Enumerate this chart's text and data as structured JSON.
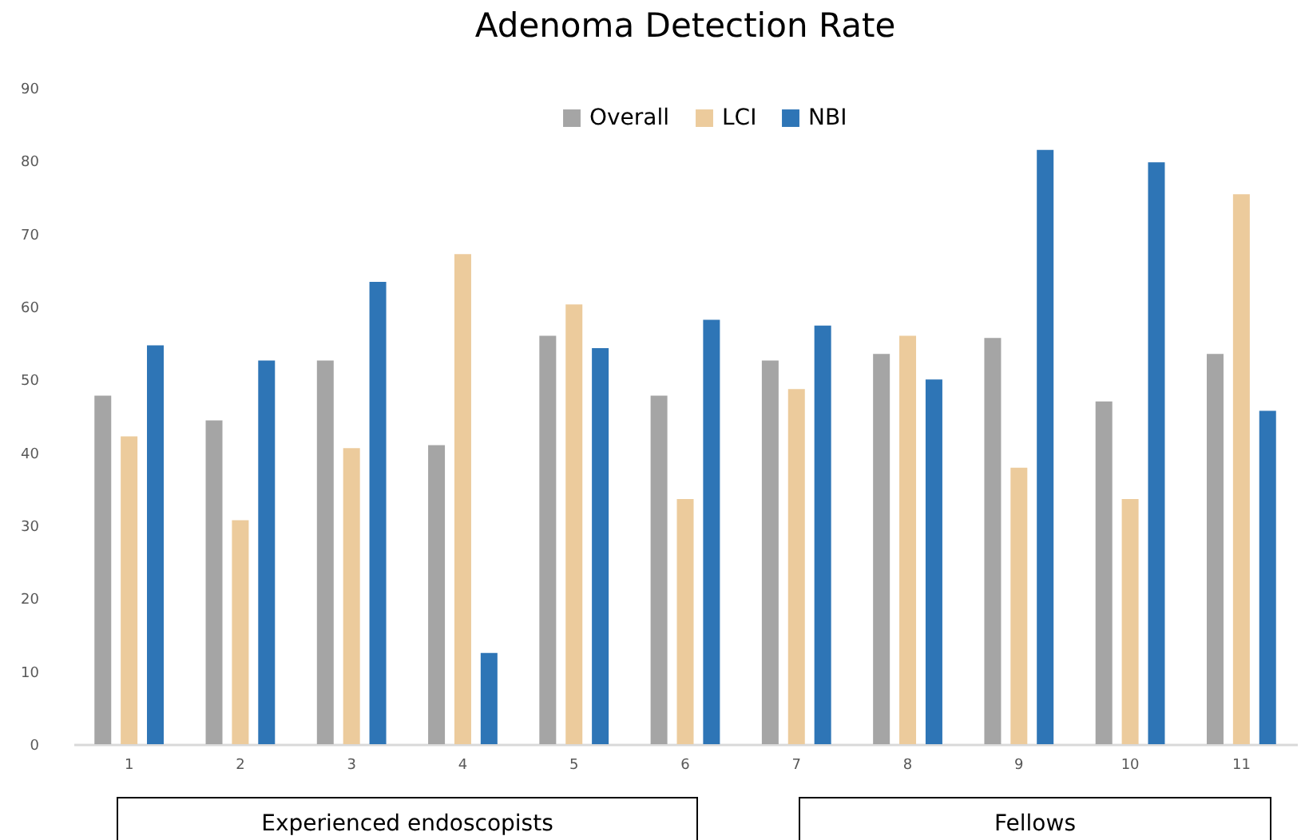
{
  "chart_data": {
    "type": "bar",
    "title": "Adenoma Detection Rate",
    "categories": [
      "1",
      "2",
      "3",
      "4",
      "5",
      "6",
      "7",
      "8",
      "9",
      "10",
      "11"
    ],
    "series": [
      {
        "name": "Overall",
        "color": "#a5a5a5",
        "values": [
          47.8,
          44.4,
          52.6,
          41.0,
          56.0,
          47.8,
          52.6,
          53.5,
          55.7,
          47.0,
          53.5
        ]
      },
      {
        "name": "LCI",
        "color": "#eccb9c",
        "values": [
          42.2,
          30.7,
          40.6,
          67.2,
          60.3,
          33.6,
          48.7,
          56.0,
          37.9,
          33.6,
          75.4
        ]
      },
      {
        "name": "NBI",
        "color": "#2e75b6",
        "values": [
          54.7,
          52.6,
          63.4,
          12.5,
          54.3,
          58.2,
          57.4,
          50.0,
          81.5,
          79.8,
          45.7
        ]
      }
    ],
    "ylim": [
      0,
      90
    ],
    "yticks": [
      0,
      10,
      20,
      30,
      40,
      50,
      60,
      70,
      80,
      90
    ],
    "grid": false,
    "legend": "top",
    "annotations": [
      "Experienced endoscopists",
      "Fellows"
    ]
  }
}
